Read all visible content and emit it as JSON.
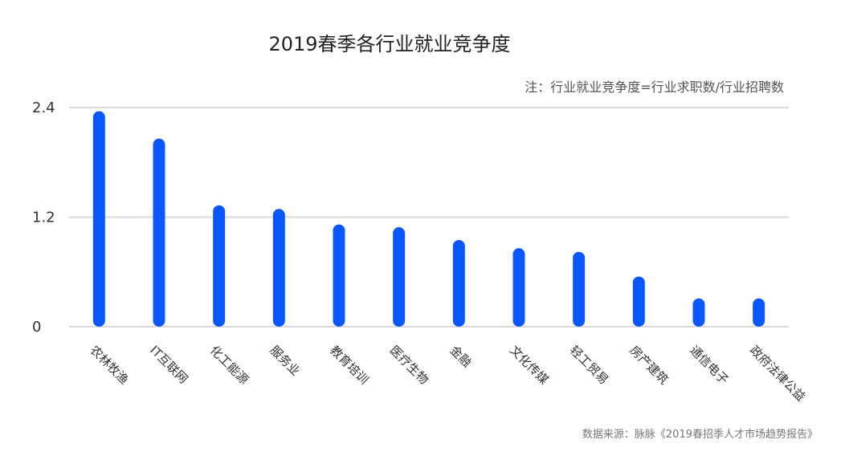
{
  "chart_data": {
    "type": "bar",
    "title": "2019春季各行业就业竞争度",
    "subtitle": "注：行业就业竞争度=行业求职数/行业招聘数",
    "source": "数据来源：脉脉《2019春招季人才市场趋势报告》",
    "xlabel": "",
    "ylabel": "",
    "ylim": [
      0,
      2.4
    ],
    "yticks": [
      "0",
      "1.2",
      "2.4"
    ],
    "grid": true,
    "categories": [
      "农林牧渔",
      "IT互联网",
      "化工能源",
      "服务业",
      "教育培训",
      "医疗生物",
      "金融",
      "文化传媒",
      "轻工贸易",
      "房产建筑",
      "通信电子",
      "政府法律公益"
    ],
    "values": [
      2.36,
      2.06,
      1.33,
      1.29,
      1.12,
      1.09,
      0.95,
      0.86,
      0.82,
      0.55,
      0.31,
      0.31
    ],
    "colors": {
      "bar": "#0b57ff",
      "grid": "#d9d9d9"
    }
  }
}
